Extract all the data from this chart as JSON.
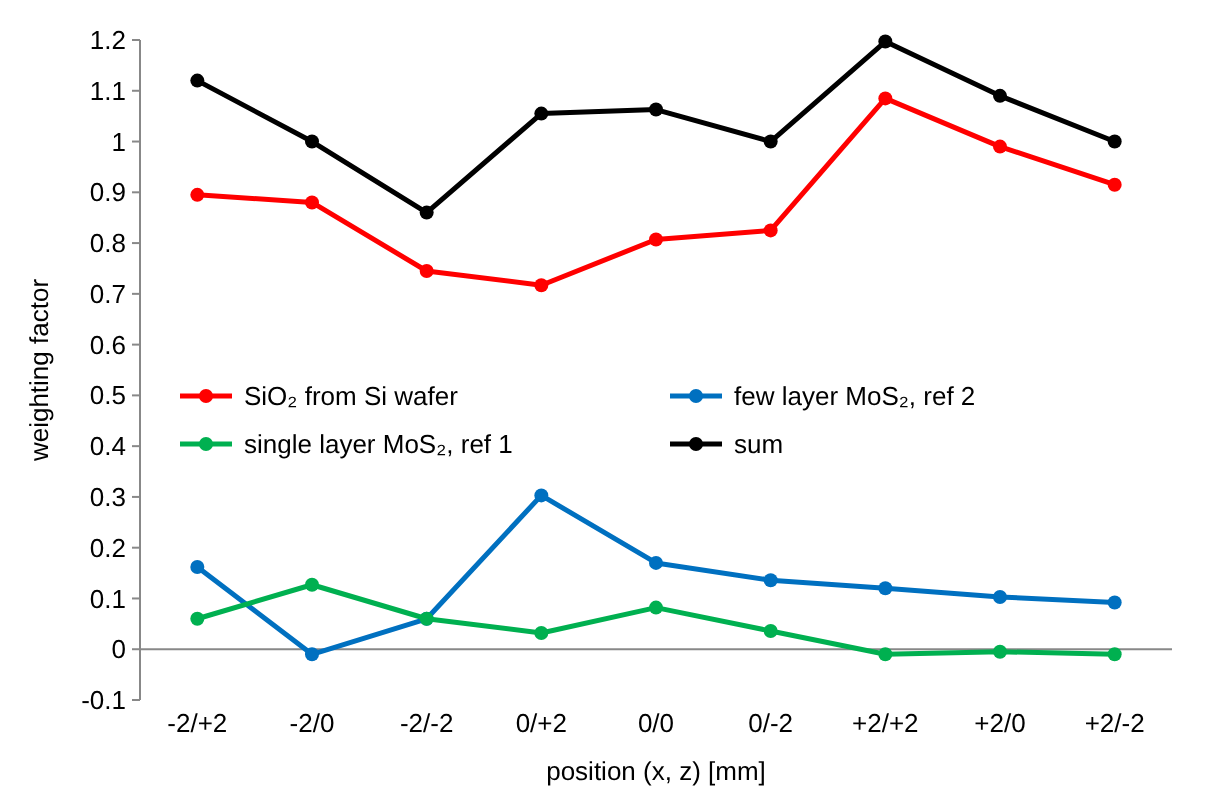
{
  "chart_data": {
    "type": "line",
    "xlabel": "position (x, z) [mm]",
    "ylabel": "weighting factor",
    "categories": [
      "-2/+2",
      "-2/0",
      "-2/-2",
      "0/+2",
      "0/0",
      "0/-2",
      "+2/+2",
      "+2/0",
      "+2/-2"
    ],
    "series": [
      {
        "name": "SiO₂ from Si wafer",
        "color": "#ff0000",
        "values": [
          0.895,
          0.88,
          0.745,
          0.717,
          0.807,
          0.825,
          1.085,
          0.99,
          0.915
        ]
      },
      {
        "name": "few layer MoS₂, ref 2",
        "color": "#0070c0",
        "values": [
          0.162,
          -0.01,
          0.06,
          0.303,
          0.17,
          0.136,
          0.12,
          0.103,
          0.092
        ]
      },
      {
        "name": "single layer MoS₂, ref 1",
        "color": "#00b050",
        "values": [
          0.06,
          0.127,
          0.06,
          0.032,
          0.082,
          0.036,
          -0.01,
          -0.005,
          -0.01
        ]
      },
      {
        "name": "sum",
        "color": "#000000",
        "values": [
          1.12,
          1.0,
          0.86,
          1.055,
          1.063,
          1.0,
          1.197,
          1.09,
          1.0
        ]
      }
    ],
    "ylim": [
      -0.1,
      1.2
    ],
    "yticks": [
      -0.1,
      0,
      0.1,
      0.2,
      0.3,
      0.4,
      0.5,
      0.6,
      0.7,
      0.8,
      0.9,
      1,
      1.1,
      1.2
    ],
    "marker": "circle",
    "legend": "left",
    "grid": false
  }
}
